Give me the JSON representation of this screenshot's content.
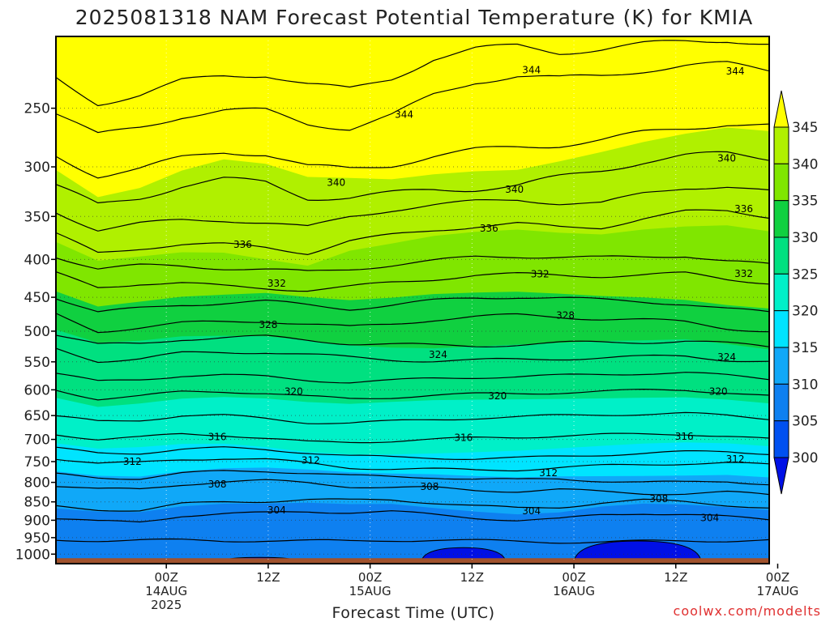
{
  "chart_data": {
    "type": "heatmap",
    "title": "2025081318 NAM Forecast Potential Temperature (K) for KMIA",
    "xlabel": "Forecast Time (UTC)",
    "ylabel": "",
    "credit": "coolwx.com/modelts",
    "y_scale": "log-pressure",
    "y_reversed": true,
    "ylim": [
      200,
      1030
    ],
    "y_ticks": [
      250,
      300,
      350,
      400,
      450,
      500,
      550,
      600,
      650,
      700,
      750,
      800,
      850,
      900,
      950,
      1000
    ],
    "x_range_hours": [
      -7,
      77
    ],
    "x_ticks": [
      {
        "hour": 6,
        "lines": [
          "00Z",
          "14AUG",
          "2025"
        ]
      },
      {
        "hour": 18,
        "lines": [
          "12Z"
        ]
      },
      {
        "hour": 30,
        "lines": [
          "00Z",
          "15AUG"
        ]
      },
      {
        "hour": 42,
        "lines": [
          "12Z"
        ]
      },
      {
        "hour": 54,
        "lines": [
          "00Z",
          "16AUG"
        ]
      },
      {
        "hour": 66,
        "lines": [
          "12Z"
        ]
      },
      {
        "hour": 78,
        "lines": [
          "00Z",
          "17AUG"
        ]
      }
    ],
    "grid": true,
    "colorbar": {
      "levels": [
        300,
        305,
        310,
        315,
        320,
        325,
        330,
        335,
        340,
        345
      ],
      "labels": [
        "300",
        "305",
        "310",
        "315",
        "320",
        "325",
        "330",
        "335",
        "340",
        "345"
      ],
      "colors": [
        "#0010e6",
        "#0050f0",
        "#0e80f0",
        "#10a8f8",
        "#00e4ff",
        "#00f0c8",
        "#00e080",
        "#10d040",
        "#80e600",
        "#b0f000",
        "#ffff00"
      ],
      "extend": "both"
    },
    "contour_interval": 2,
    "contour_labels": [
      {
        "hour": 2,
        "pressure": 750,
        "label": "312"
      },
      {
        "hour": 12,
        "pressure": 805,
        "label": "308"
      },
      {
        "hour": 19,
        "pressure": 872,
        "label": "304"
      },
      {
        "hour": 12,
        "pressure": 695,
        "label": "316"
      },
      {
        "hour": 23,
        "pressure": 747,
        "label": "312"
      },
      {
        "hour": 41,
        "pressure": 696,
        "label": "316"
      },
      {
        "hour": 37,
        "pressure": 811,
        "label": "308"
      },
      {
        "hour": 49,
        "pressure": 874,
        "label": "304"
      },
      {
        "hour": 51,
        "pressure": 777,
        "label": "312"
      },
      {
        "hour": 67,
        "pressure": 694,
        "label": "316"
      },
      {
        "hour": 73,
        "pressure": 744,
        "label": "312"
      },
      {
        "hour": 64,
        "pressure": 842,
        "label": "308"
      },
      {
        "hour": 70,
        "pressure": 893,
        "label": "304"
      },
      {
        "hour": 21,
        "pressure": 603,
        "label": "320"
      },
      {
        "hour": 45,
        "pressure": 612,
        "label": "320"
      },
      {
        "hour": 71,
        "pressure": 603,
        "label": "320"
      },
      {
        "hour": 38,
        "pressure": 538,
        "label": "324"
      },
      {
        "hour": 72,
        "pressure": 542,
        "label": "324"
      },
      {
        "hour": 18,
        "pressure": 490,
        "label": "328"
      },
      {
        "hour": 53,
        "pressure": 476,
        "label": "328"
      },
      {
        "hour": 19,
        "pressure": 431,
        "label": "332"
      },
      {
        "hour": 50,
        "pressure": 419,
        "label": "332"
      },
      {
        "hour": 74,
        "pressure": 418,
        "label": "332"
      },
      {
        "hour": 15,
        "pressure": 382,
        "label": "336"
      },
      {
        "hour": 44,
        "pressure": 363,
        "label": "336"
      },
      {
        "hour": 74,
        "pressure": 342,
        "label": "336"
      },
      {
        "hour": 26,
        "pressure": 315,
        "label": "340"
      },
      {
        "hour": 47,
        "pressure": 322,
        "label": "340"
      },
      {
        "hour": 72,
        "pressure": 292,
        "label": "340"
      },
      {
        "hour": 34,
        "pressure": 255,
        "label": "344"
      },
      {
        "hour": 49,
        "pressure": 222,
        "label": "344"
      },
      {
        "hour": 73,
        "pressure": 223,
        "label": "344"
      }
    ],
    "isentropes": [
      {
        "theta": 302,
        "pressure": [
          958,
          958,
          957,
          958,
          960,
          958,
          959,
          961,
          958,
          957,
          959,
          961,
          963,
          963,
          961,
          959,
          959,
          958
        ]
      },
      {
        "theta": 304,
        "pressure": [
          895,
          904,
          905,
          887,
          882,
          880,
          876,
          878,
          876,
          885,
          893,
          900,
          897,
          885,
          880,
          884,
          891,
          898
        ]
      },
      {
        "theta": 306,
        "pressure": [
          862,
          870,
          873,
          856,
          850,
          848,
          844,
          846,
          844,
          852,
          861,
          867,
          864,
          852,
          846,
          850,
          858,
          866
        ]
      },
      {
        "theta": 308,
        "pressure": [
          808,
          817,
          818,
          805,
          798,
          796,
          801,
          810,
          813,
          814,
          820,
          822,
          818,
          824,
          828,
          828,
          825,
          832
        ]
      },
      {
        "theta": 310,
        "pressure": [
          780,
          788,
          790,
          778,
          773,
          772,
          777,
          784,
          786,
          787,
          792,
          794,
          791,
          796,
          800,
          800,
          797,
          804
        ]
      },
      {
        "theta": 312,
        "pressure": [
          742,
          754,
          753,
          745,
          742,
          745,
          754,
          764,
          767,
          768,
          770,
          769,
          764,
          760,
          757,
          754,
          753,
          758
        ]
      },
      {
        "theta": 314,
        "pressure": [
          720,
          730,
          730,
          722,
          719,
          722,
          729,
          737,
          740,
          741,
          743,
          742,
          738,
          734,
          731,
          728,
          727,
          731
        ]
      },
      {
        "theta": 316,
        "pressure": [
          688,
          700,
          696,
          688,
          690,
          698,
          706,
          706,
          703,
          700,
          697,
          695,
          692,
          690,
          689,
          688,
          693,
          700
        ]
      },
      {
        "theta": 318,
        "pressure": [
          652,
          662,
          659,
          650,
          650,
          656,
          664,
          665,
          662,
          658,
          655,
          653,
          650,
          648,
          647,
          646,
          650,
          656
        ]
      },
      {
        "theta": 320,
        "pressure": [
          600,
          617,
          612,
          604,
          603,
          606,
          613,
          617,
          614,
          610,
          608,
          607,
          605,
          603,
          601,
          600,
          605,
          612
        ]
      },
      {
        "theta": 322,
        "pressure": [
          570,
          585,
          581,
          574,
          573,
          576,
          582,
          586,
          583,
          579,
          577,
          576,
          574,
          572,
          570,
          569,
          574,
          580
        ]
      },
      {
        "theta": 324,
        "pressure": [
          528,
          548,
          545,
          536,
          534,
          533,
          538,
          543,
          546,
          548,
          548,
          546,
          544,
          543,
          542,
          540,
          546,
          550
        ]
      },
      {
        "theta": 326,
        "pressure": [
          505,
          522,
          520,
          512,
          510,
          509,
          514,
          519,
          521,
          523,
          523,
          521,
          519,
          518,
          517,
          515,
          520,
          525
        ]
      },
      {
        "theta": 328,
        "pressure": [
          475,
          500,
          494,
          488,
          486,
          484,
          489,
          494,
          489,
          482,
          478,
          476,
          478,
          481,
          483,
          486,
          495,
          500
        ]
      },
      {
        "theta": 330,
        "pressure": [
          450,
          472,
          466,
          460,
          458,
          456,
          461,
          466,
          461,
          455,
          451,
          449,
          451,
          454,
          456,
          459,
          467,
          472
        ]
      },
      {
        "theta": 332,
        "pressure": [
          418,
          436,
          431,
          431,
          435,
          437,
          440,
          436,
          430,
          425,
          420,
          419,
          420,
          421,
          420,
          418,
          425,
          430
        ]
      },
      {
        "theta": 334,
        "pressure": [
          396,
          412,
          408,
          408,
          411,
          413,
          416,
          412,
          407,
          402,
          397,
          396,
          397,
          398,
          397,
          395,
          402,
          407
        ]
      },
      {
        "theta": 336,
        "pressure": [
          370,
          392,
          386,
          382,
          382,
          385,
          392,
          378,
          371,
          365,
          361,
          358,
          362,
          362,
          352,
          345,
          344,
          350
        ]
      },
      {
        "theta": 338,
        "pressure": [
          345,
          365,
          358,
          354,
          354,
          357,
          362,
          350,
          343,
          338,
          334,
          332,
          336,
          336,
          326,
          320,
          319,
          324
        ]
      },
      {
        "theta": 340,
        "pressure": [
          318,
          338,
          330,
          318,
          312,
          315,
          330,
          330,
          326,
          322,
          321,
          318,
          310,
          303,
          295,
          290,
          288,
          292
        ]
      },
      {
        "theta": 342,
        "pressure": [
          290,
          308,
          302,
          292,
          286,
          288,
          300,
          302,
          298,
          290,
          285,
          282,
          280,
          276,
          270,
          266,
          262,
          264
        ]
      },
      {
        "theta": 344,
        "pressure": [
          254,
          272,
          265,
          256,
          252,
          252,
          262,
          266,
          256,
          240,
          230,
          226,
          228,
          226,
          222,
          219,
          218,
          222
        ]
      },
      {
        "theta": 346,
        "pressure": [
          228,
          246,
          240,
          230,
          226,
          225,
          232,
          236,
          228,
          214,
          208,
          206,
          210,
          208,
          205,
          203,
          202,
          205
        ]
      }
    ],
    "bands": [
      {
        "theta": 345,
        "pressure": [
          224,
          262,
          254,
          244,
          232,
          228,
          232,
          236,
          226,
          212,
          206,
          204,
          208,
          206,
          204,
          202,
          201,
          203
        ]
      },
      {
        "theta": 340,
        "pressure": [
          302,
          330,
          322,
          306,
          296,
          300,
          312,
          312,
          312,
          306,
          302,
          300,
          292,
          284,
          276,
          270,
          266,
          270
        ]
      },
      {
        "theta": 335,
        "pressure": [
          380,
          402,
          396,
          390,
          390,
          398,
          406,
          388,
          380,
          372,
          368,
          366,
          370,
          372,
          366,
          362,
          360,
          366
        ]
      },
      {
        "theta": 330,
        "pressure": [
          440,
          462,
          456,
          450,
          448,
          446,
          452,
          456,
          452,
          446,
          443,
          441,
          443,
          446,
          448,
          452,
          460,
          466
        ]
      },
      {
        "theta": 325,
        "pressure": [
          500,
          520,
          516,
          508,
          506,
          506,
          512,
          520,
          524,
          526,
          524,
          522,
          520,
          518,
          517,
          515,
          522,
          530
        ]
      },
      {
        "theta": 320,
        "pressure": [
          612,
          630,
          624,
          616,
          614,
          618,
          626,
          630,
          626,
          622,
          620,
          618,
          616,
          614,
          612,
          611,
          616,
          624
        ]
      },
      {
        "theta": 315,
        "pressure": [
          712,
          724,
          720,
          712,
          710,
          716,
          726,
          730,
          730,
          728,
          726,
          724,
          720,
          716,
          712,
          710,
          712,
          718
        ]
      },
      {
        "theta": 310,
        "pressure": [
          770,
          780,
          782,
          770,
          764,
          764,
          770,
          778,
          782,
          784,
          788,
          790,
          786,
          784,
          782,
          780,
          778,
          784
        ]
      },
      {
        "theta": 305,
        "pressure": [
          870,
          880,
          882,
          866,
          858,
          856,
          852,
          854,
          852,
          862,
          872,
          880,
          876,
          862,
          856,
          860,
          868,
          876
        ]
      },
      {
        "theta": 300,
        "pressure": [
          1030,
          1030,
          1030,
          1030,
          1030,
          1030,
          1030,
          1030,
          1030,
          1030,
          1030,
          1030,
          1030,
          1030,
          1030,
          1030,
          1030,
          1030
        ]
      }
    ],
    "min_cells": [
      {
        "hour_start": 36,
        "hour_end": 46,
        "pressure_top": 980,
        "theta": 300
      },
      {
        "hour_start": 54,
        "hour_end": 69,
        "pressure_top": 960,
        "theta": 300
      },
      {
        "hour_start": 12,
        "hour_end": 22,
        "pressure_top": 1010,
        "theta": 300
      }
    ]
  }
}
